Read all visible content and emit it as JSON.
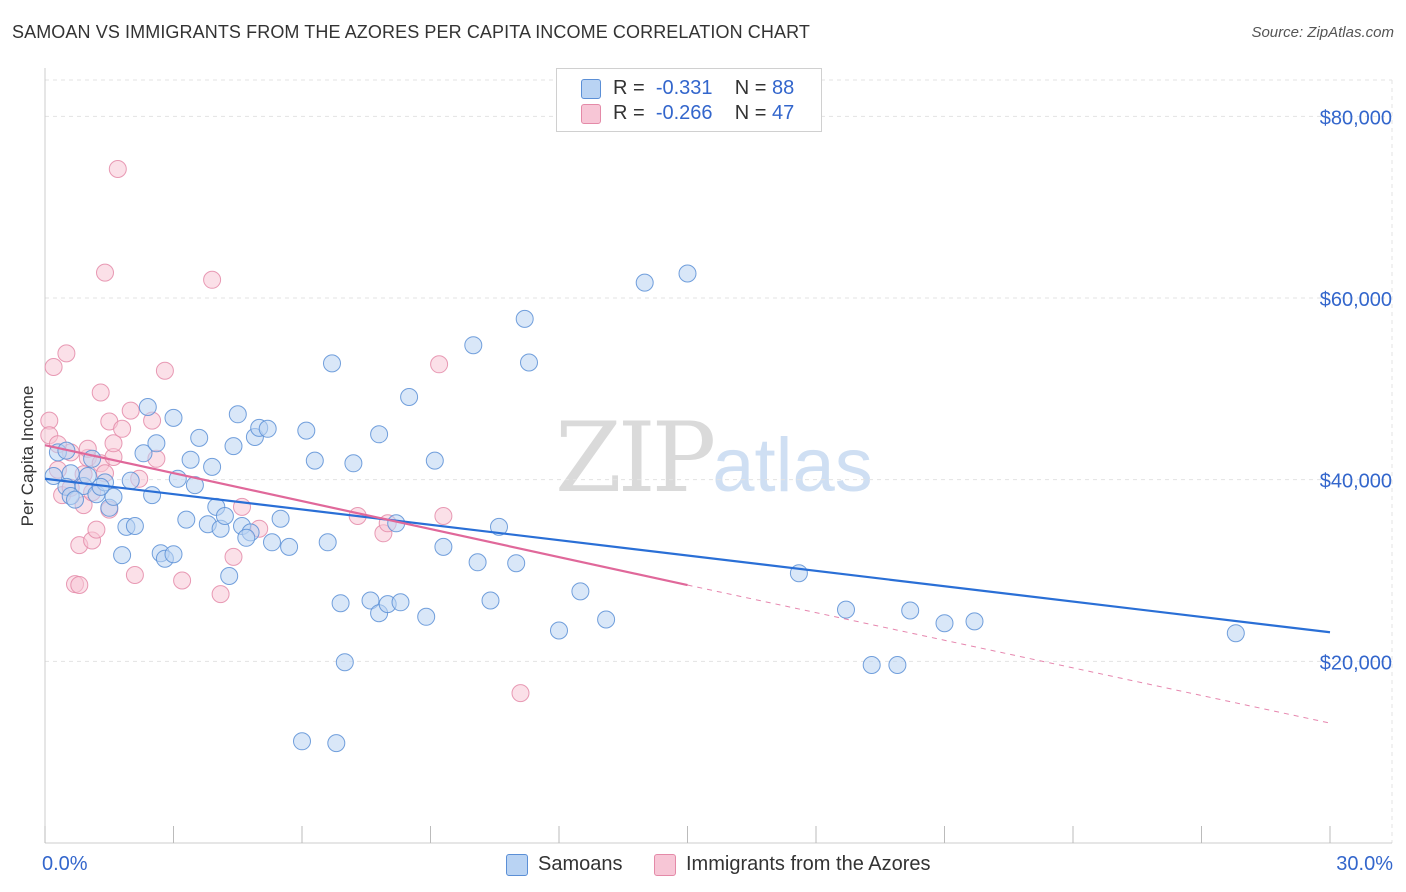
{
  "title": "SAMOAN VS IMMIGRANTS FROM THE AZORES PER CAPITA INCOME CORRELATION CHART",
  "source": "Source: ZipAtlas.com",
  "watermark": {
    "zip": "ZIP",
    "atlas": "atlas"
  },
  "legend": {
    "samoans": {
      "r_label": "R =",
      "r_value": "-0.331",
      "n_label": "N =",
      "n_value": "88"
    },
    "azores": {
      "r_label": "R =",
      "r_value": "-0.266",
      "n_label": "N =",
      "n_value": "47"
    }
  },
  "bottom_legend": {
    "samoans": "Samoans",
    "azores": "Immigrants from the Azores"
  },
  "colors": {
    "samoans_fill": "#b9d3f3",
    "samoans_stroke": "#5b8fd6",
    "samoans_line": "#2a6fd6",
    "azores_fill": "#f7c6d6",
    "azores_stroke": "#e48aa8",
    "azores_line": "#e0689a",
    "tick_label": "#3366cc",
    "grid": "#e3e3e3"
  },
  "chart_data": {
    "type": "scatter",
    "title": "SAMOAN VS IMMIGRANTS FROM THE AZORES PER CAPITA INCOME CORRELATION CHART",
    "xlabel": "",
    "ylabel": "Per Capita Income",
    "xlim": [
      0,
      30
    ],
    "ylim": [
      0,
      84000
    ],
    "x_tick_labels": [
      "0.0%",
      "30.0%"
    ],
    "y_ticks": [
      20000,
      40000,
      60000,
      80000
    ],
    "y_tick_labels": [
      "$20,000",
      "$40,000",
      "$60,000",
      "$80,000"
    ],
    "series": [
      {
        "name": "Samoans",
        "points": [
          [
            0.3,
            43000
          ],
          [
            0.5,
            43200
          ],
          [
            0.6,
            40700
          ],
          [
            0.5,
            39200
          ],
          [
            0.6,
            38200
          ],
          [
            0.9,
            39300
          ],
          [
            1.0,
            40400
          ],
          [
            1.1,
            42300
          ],
          [
            1.2,
            38400
          ],
          [
            1.4,
            39700
          ],
          [
            1.5,
            36900
          ],
          [
            1.6,
            38100
          ],
          [
            1.8,
            31700
          ],
          [
            1.9,
            34800
          ],
          [
            2.0,
            39900
          ],
          [
            2.1,
            34900
          ],
          [
            2.3,
            42900
          ],
          [
            2.4,
            48000
          ],
          [
            2.5,
            38300
          ],
          [
            2.6,
            44000
          ],
          [
            2.7,
            31900
          ],
          [
            2.8,
            31300
          ],
          [
            3.0,
            31800
          ],
          [
            3.0,
            46800
          ],
          [
            3.1,
            40100
          ],
          [
            3.3,
            35600
          ],
          [
            3.4,
            42200
          ],
          [
            3.5,
            39400
          ],
          [
            3.6,
            44600
          ],
          [
            3.8,
            35100
          ],
          [
            3.9,
            41400
          ],
          [
            4.0,
            37000
          ],
          [
            4.1,
            34600
          ],
          [
            4.2,
            36000
          ],
          [
            4.3,
            29400
          ],
          [
            4.4,
            43700
          ],
          [
            4.5,
            47200
          ],
          [
            4.6,
            34900
          ],
          [
            4.8,
            34200
          ],
          [
            4.9,
            44700
          ],
          [
            5.0,
            45700
          ],
          [
            5.2,
            45600
          ],
          [
            5.3,
            33100
          ],
          [
            5.5,
            35700
          ],
          [
            5.7,
            32600
          ],
          [
            6.1,
            45400
          ],
          [
            6.3,
            42100
          ],
          [
            6.6,
            33100
          ],
          [
            6.7,
            52800
          ],
          [
            6.9,
            26400
          ],
          [
            7.0,
            19900
          ],
          [
            7.2,
            41800
          ],
          [
            7.6,
            26700
          ],
          [
            7.8,
            25300
          ],
          [
            7.8,
            45000
          ],
          [
            8.0,
            26300
          ],
          [
            8.2,
            35200
          ],
          [
            8.3,
            26500
          ],
          [
            8.5,
            49100
          ],
          [
            8.9,
            24900
          ],
          [
            9.1,
            42100
          ],
          [
            9.3,
            32600
          ],
          [
            10.0,
            54800
          ],
          [
            10.1,
            30900
          ],
          [
            10.4,
            26700
          ],
          [
            10.6,
            34800
          ],
          [
            11.0,
            30800
          ],
          [
            11.2,
            57700
          ],
          [
            11.3,
            52900
          ],
          [
            12.0,
            23400
          ],
          [
            12.5,
            27700
          ],
          [
            13.1,
            24600
          ],
          [
            14.0,
            61700
          ],
          [
            15.0,
            62700
          ],
          [
            17.6,
            29700
          ],
          [
            18.7,
            25700
          ],
          [
            19.3,
            19600
          ],
          [
            19.9,
            19600
          ],
          [
            20.2,
            25600
          ],
          [
            21.0,
            24200
          ],
          [
            21.7,
            24400
          ],
          [
            27.8,
            23100
          ],
          [
            6.0,
            11200
          ],
          [
            6.8,
            11000
          ],
          [
            0.2,
            40400
          ],
          [
            1.3,
            39200
          ],
          [
            0.7,
            37800
          ],
          [
            4.7,
            33600
          ]
        ]
      },
      {
        "name": "Immigrants from the Azores",
        "points": [
          [
            0.1,
            46500
          ],
          [
            0.1,
            44900
          ],
          [
            0.2,
            52400
          ],
          [
            0.3,
            41100
          ],
          [
            0.4,
            38300
          ],
          [
            0.5,
            53900
          ],
          [
            0.6,
            43000
          ],
          [
            0.7,
            28500
          ],
          [
            0.8,
            32800
          ],
          [
            0.8,
            28400
          ],
          [
            0.9,
            40600
          ],
          [
            0.9,
            37200
          ],
          [
            1.0,
            42400
          ],
          [
            1.1,
            33300
          ],
          [
            1.2,
            34500
          ],
          [
            1.3,
            41800
          ],
          [
            1.3,
            49600
          ],
          [
            1.4,
            62800
          ],
          [
            1.5,
            46400
          ],
          [
            1.5,
            36700
          ],
          [
            1.6,
            42500
          ],
          [
            1.6,
            44000
          ],
          [
            1.7,
            74200
          ],
          [
            1.8,
            45600
          ],
          [
            2.0,
            47600
          ],
          [
            2.1,
            29500
          ],
          [
            2.2,
            40100
          ],
          [
            2.5,
            46500
          ],
          [
            2.6,
            42300
          ],
          [
            2.8,
            52000
          ],
          [
            3.2,
            28900
          ],
          [
            3.9,
            62000
          ],
          [
            4.1,
            27400
          ],
          [
            4.4,
            31500
          ],
          [
            4.6,
            37000
          ],
          [
            5.0,
            34600
          ],
          [
            7.3,
            36000
          ],
          [
            7.9,
            34100
          ],
          [
            8.0,
            35200
          ],
          [
            9.2,
            52700
          ],
          [
            9.3,
            36000
          ],
          [
            11.1,
            16500
          ],
          [
            0.3,
            43900
          ],
          [
            0.6,
            39100
          ],
          [
            1.0,
            43400
          ],
          [
            1.1,
            38600
          ],
          [
            1.4,
            40700
          ]
        ]
      }
    ],
    "trend_lines": [
      {
        "series": "Samoans",
        "x": [
          0,
          30
        ],
        "y": [
          40100,
          23200
        ]
      },
      {
        "series": "Immigrants from the Azores",
        "x": [
          0,
          15
        ],
        "y": [
          43800,
          28400
        ],
        "dashed_to": [
          30,
          13200
        ]
      }
    ]
  }
}
